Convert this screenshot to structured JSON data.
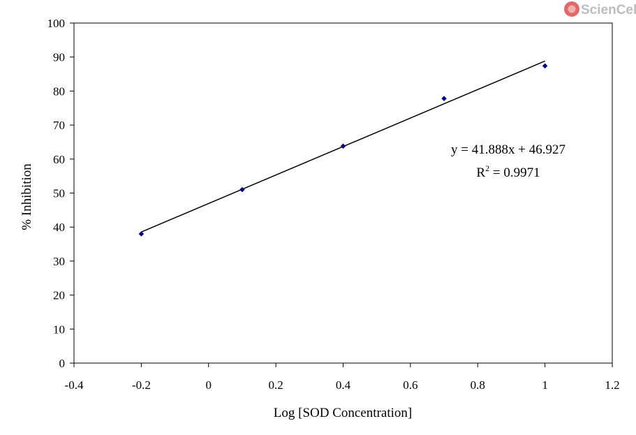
{
  "logo": {
    "text": "ScienCell",
    "color": "#e06060"
  },
  "chart_data": {
    "type": "scatter",
    "title": "",
    "xlabel": "Log [SOD Concentration]",
    "ylabel": "% Inhibition",
    "xlim": [
      -0.4,
      1.2
    ],
    "ylim": [
      0,
      100
    ],
    "xticks": [
      -0.4,
      -0.2,
      0,
      0.2,
      0.4,
      0.6,
      0.8,
      1,
      1.2
    ],
    "xtick_labels": [
      "-0.4",
      "-0.2",
      "0",
      "0.2",
      "0.4",
      "0.6",
      "0.8",
      "1",
      "1.2"
    ],
    "yticks": [
      0,
      10,
      20,
      30,
      40,
      50,
      60,
      70,
      80,
      90,
      100
    ],
    "ytick_labels": [
      "0",
      "10",
      "20",
      "30",
      "40",
      "50",
      "60",
      "70",
      "80",
      "90",
      "100"
    ],
    "grid": false,
    "legend": "none",
    "series": [
      {
        "x": [
          -0.2,
          0.1,
          0.4,
          0.7,
          1.0
        ],
        "y": [
          38.0,
          51.0,
          63.8,
          77.8,
          87.4
        ],
        "color": "#000080",
        "marker": "diamond"
      }
    ],
    "trendline": {
      "slope": 41.888,
      "intercept": 46.927,
      "x_range": [
        -0.2,
        1.0
      ],
      "color": "#000000"
    },
    "annotations": {
      "equation": "y = 41.888x + 46.927",
      "r2_prefix": "R",
      "r2_superscript": "2",
      "r2_suffix": " = 0.9971"
    }
  }
}
